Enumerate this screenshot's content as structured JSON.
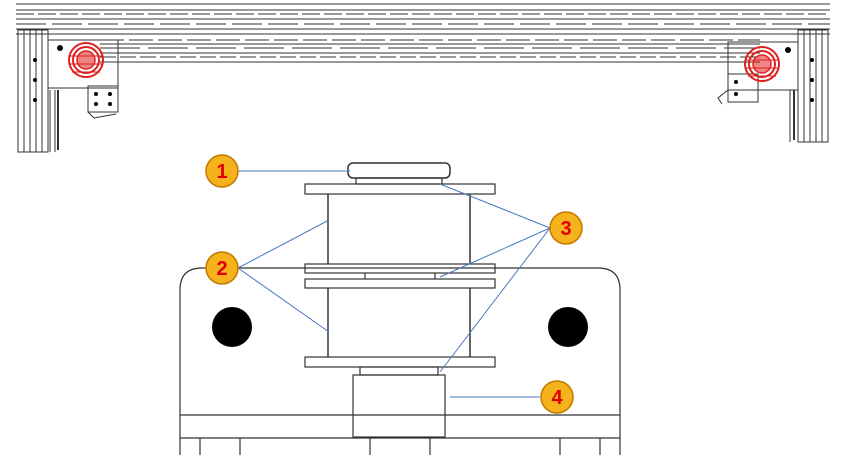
{
  "diagram": {
    "callouts": [
      {
        "id": "callout-1",
        "label": "1"
      },
      {
        "id": "callout-2",
        "label": "2"
      },
      {
        "id": "callout-3",
        "label": "3"
      },
      {
        "id": "callout-4",
        "label": "4"
      }
    ]
  },
  "colors": {
    "callout_fill": "#f5b21b",
    "callout_stroke": "#c07a00",
    "callout_text": "#e00000",
    "leader_line": "#4a78c2",
    "drawing_stroke": "#333333",
    "roller_highlight": "#e02020"
  }
}
